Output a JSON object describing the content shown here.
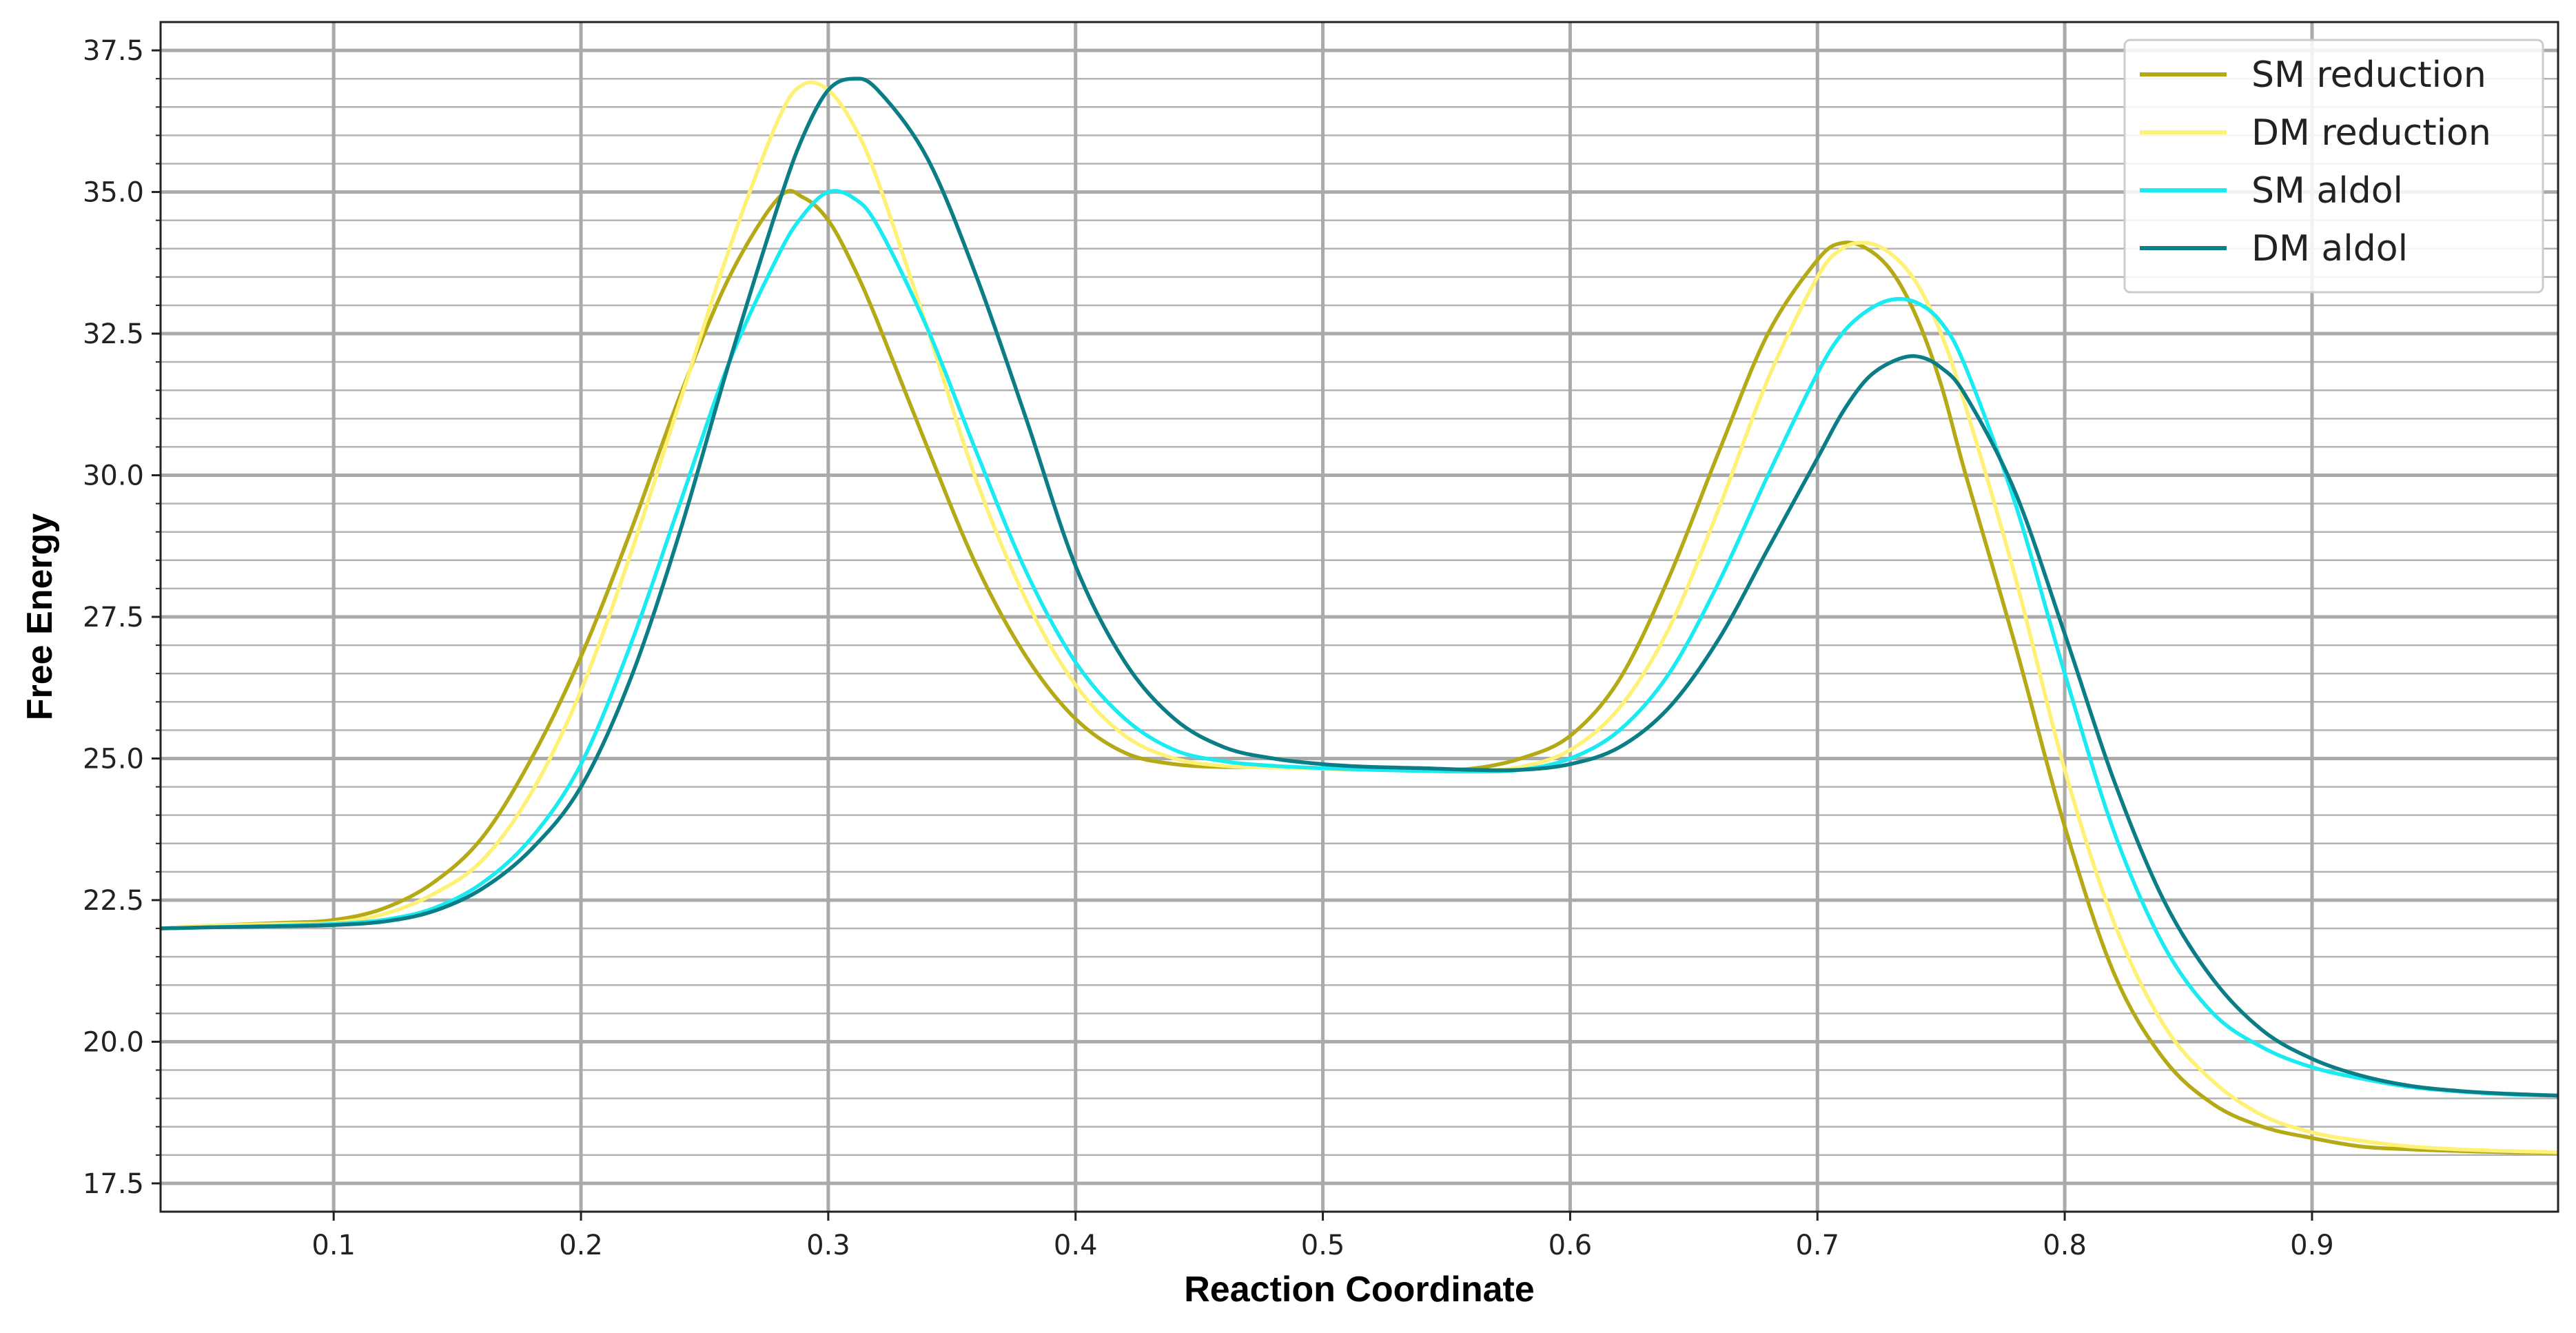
{
  "chart_data": {
    "type": "line",
    "xlabel": "Reaction Coordinate",
    "ylabel": "Free Energy",
    "xlim": [
      0.03,
      0.9995
    ],
    "ylim": [
      17.0,
      38.0
    ],
    "x_ticks": [
      "0.1",
      "0.2",
      "0.3",
      "0.4",
      "0.5",
      "0.6",
      "0.7",
      "0.8",
      "0.9"
    ],
    "y_ticks": [
      "17.5",
      "20.0",
      "22.5",
      "25.0",
      "27.5",
      "30.0",
      "32.5",
      "35.0",
      "37.5"
    ],
    "grid": true,
    "legend_position": "top-right",
    "x": [
      0.03,
      0.05,
      0.08,
      0.1,
      0.12,
      0.14,
      0.16,
      0.18,
      0.2,
      0.22,
      0.24,
      0.26,
      0.28,
      0.29,
      0.3,
      0.31,
      0.32,
      0.34,
      0.36,
      0.38,
      0.4,
      0.42,
      0.44,
      0.46,
      0.48,
      0.5,
      0.52,
      0.54,
      0.56,
      0.58,
      0.6,
      0.62,
      0.64,
      0.66,
      0.68,
      0.7,
      0.71,
      0.72,
      0.73,
      0.74,
      0.75,
      0.76,
      0.78,
      0.8,
      0.82,
      0.84,
      0.86,
      0.88,
      0.9,
      0.92,
      0.94,
      0.96,
      0.98,
      0.9995
    ],
    "series": [
      {
        "name": "SM reduction",
        "color": "#b5a916",
        "values": [
          22.0,
          22.05,
          22.1,
          22.15,
          22.35,
          22.8,
          23.6,
          25.0,
          26.8,
          29.0,
          31.4,
          33.5,
          34.9,
          34.9,
          34.5,
          33.7,
          32.7,
          30.5,
          28.4,
          26.8,
          25.7,
          25.1,
          24.9,
          24.85,
          24.85,
          24.82,
          24.8,
          24.8,
          24.82,
          25.0,
          25.4,
          26.4,
          28.2,
          30.4,
          32.5,
          33.8,
          34.1,
          34.0,
          33.6,
          32.8,
          31.6,
          30.0,
          27.0,
          23.8,
          21.2,
          19.7,
          18.9,
          18.5,
          18.3,
          18.15,
          18.1,
          18.07,
          18.05,
          18.04
        ]
      },
      {
        "name": "DM reduction",
        "color": "#fff176",
        "values": [
          22.0,
          22.05,
          22.08,
          22.1,
          22.25,
          22.6,
          23.2,
          24.4,
          26.2,
          28.6,
          31.3,
          34.0,
          36.3,
          36.9,
          36.8,
          36.2,
          35.2,
          32.6,
          29.9,
          27.8,
          26.3,
          25.4,
          25.0,
          24.87,
          24.84,
          24.82,
          24.8,
          24.78,
          24.78,
          24.85,
          25.15,
          25.9,
          27.3,
          29.4,
          31.7,
          33.5,
          34.0,
          34.1,
          33.9,
          33.4,
          32.5,
          31.2,
          28.2,
          24.8,
          22.1,
          20.3,
          19.3,
          18.7,
          18.4,
          18.25,
          18.15,
          18.1,
          18.07,
          18.05
        ]
      },
      {
        "name": "SM aldol",
        "color": "#1aeaf2",
        "values": [
          22.0,
          22.02,
          22.05,
          22.08,
          22.15,
          22.35,
          22.8,
          23.6,
          24.9,
          27.0,
          29.5,
          32.0,
          33.9,
          34.6,
          35.0,
          34.9,
          34.4,
          32.6,
          30.4,
          28.3,
          26.7,
          25.7,
          25.15,
          24.95,
          24.87,
          24.83,
          24.8,
          24.78,
          24.77,
          24.8,
          25.0,
          25.5,
          26.5,
          28.1,
          30.0,
          31.8,
          32.5,
          32.9,
          33.1,
          33.05,
          32.7,
          31.9,
          29.5,
          26.5,
          23.7,
          21.7,
          20.5,
          19.9,
          19.55,
          19.35,
          19.2,
          19.12,
          19.07,
          19.05
        ]
      },
      {
        "name": "DM aldol",
        "color": "#0b7d87",
        "values": [
          22.0,
          22.02,
          22.04,
          22.06,
          22.12,
          22.3,
          22.7,
          23.4,
          24.5,
          26.4,
          29.0,
          32.0,
          34.8,
          36.0,
          36.8,
          37.0,
          36.8,
          35.6,
          33.5,
          31.0,
          28.4,
          26.7,
          25.7,
          25.2,
          25.0,
          24.9,
          24.85,
          24.83,
          24.8,
          24.8,
          24.9,
          25.2,
          25.9,
          27.1,
          28.7,
          30.3,
          31.1,
          31.7,
          32.0,
          32.1,
          31.9,
          31.4,
          29.7,
          27.2,
          24.6,
          22.5,
          21.1,
          20.2,
          19.7,
          19.4,
          19.22,
          19.13,
          19.08,
          19.05
        ]
      }
    ]
  }
}
